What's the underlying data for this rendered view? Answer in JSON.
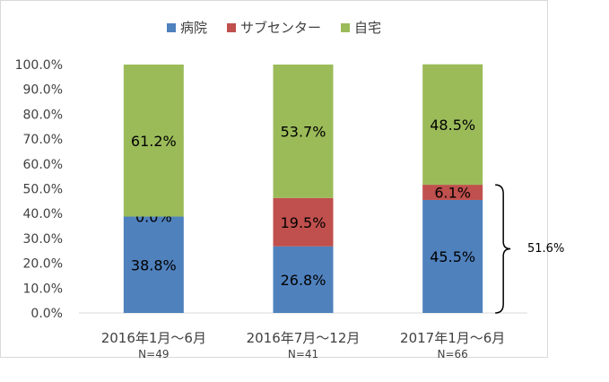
{
  "chart_data": {
    "type": "bar",
    "stacked": true,
    "categories": [
      "2016年1月～6月",
      "2016年7月～12月",
      "2017年1月～6月"
    ],
    "category_notes": [
      "N=49",
      "N=41",
      "N=66"
    ],
    "series": [
      {
        "name": "病院",
        "color": "#4f81bd",
        "values": [
          38.8,
          26.8,
          45.5
        ],
        "labels": [
          "38.8%",
          "26.8%",
          "45.5%"
        ]
      },
      {
        "name": "サブセンター",
        "color": "#c0504d",
        "values": [
          0.0,
          19.5,
          6.1
        ],
        "labels": [
          "0.0%",
          "19.5%",
          "6.1%"
        ]
      },
      {
        "name": "自宅",
        "color": "#9bbb59",
        "values": [
          61.2,
          53.7,
          48.5
        ],
        "labels": [
          "61.2%",
          "53.7%",
          "48.5%"
        ]
      }
    ],
    "yticks": [
      "0.0%",
      "10.0%",
      "20.0%",
      "30.0%",
      "40.0%",
      "50.0%",
      "60.0%",
      "70.0%",
      "80.0%",
      "90.0%",
      "100.0%"
    ],
    "ylim": [
      0,
      100
    ],
    "legend_position": "top",
    "annotation": {
      "text": "51.6%",
      "category_index": 2,
      "range": [
        0,
        51.6
      ]
    }
  }
}
